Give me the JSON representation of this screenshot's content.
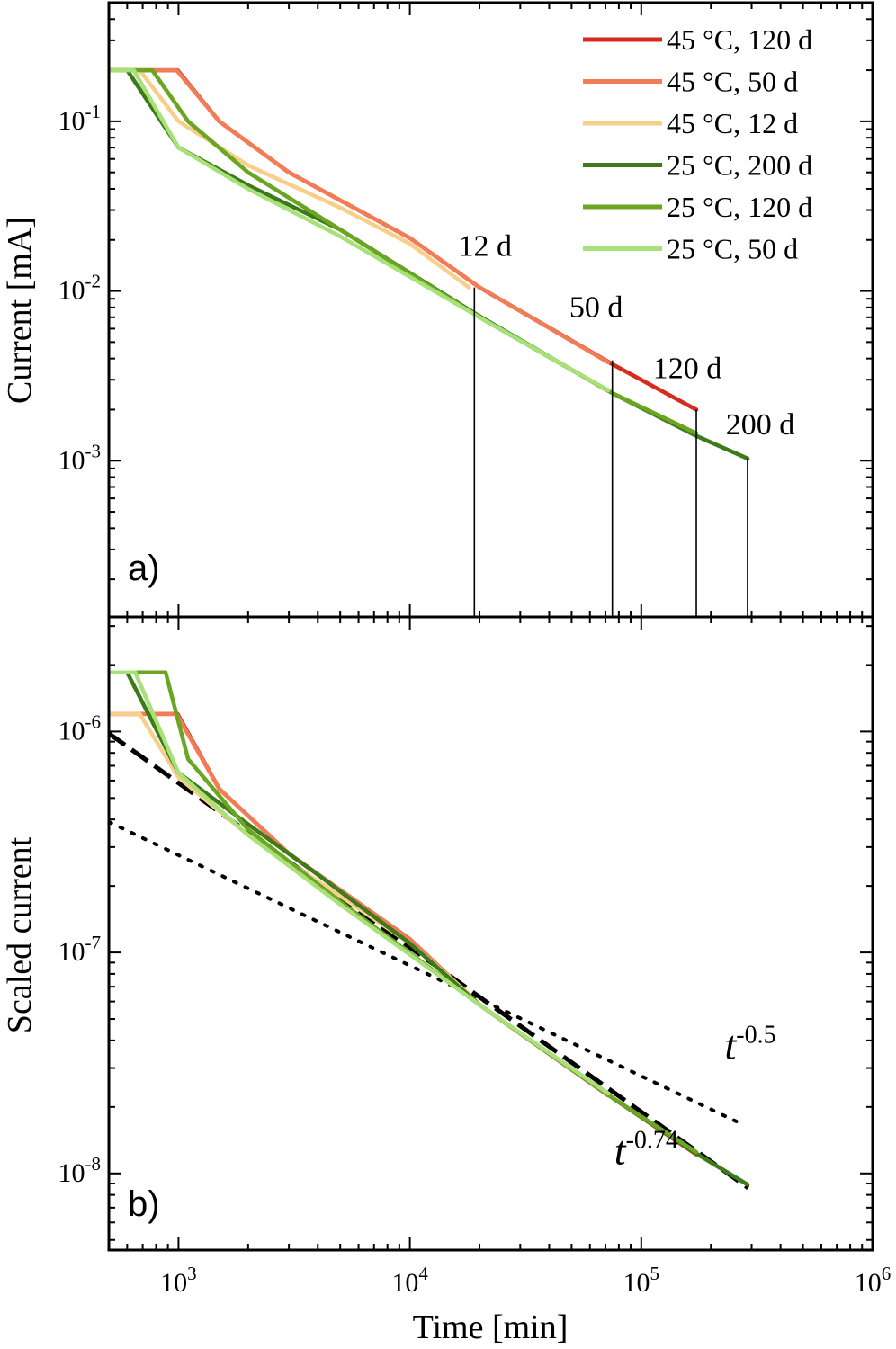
{
  "xlabel": "Time [min]",
  "chart_data": [
    {
      "panel": "a)",
      "type": "line",
      "xscale": "log",
      "yscale": "log",
      "xlabel": "Time [min]",
      "ylabel": "Current [mA]",
      "xlim": [
        500,
        1000000
      ],
      "ylim": [
        0.00012,
        0.5
      ],
      "xticks": [
        {
          "value": 1000,
          "base": "10",
          "exp": "3"
        },
        {
          "value": 10000,
          "base": "10",
          "exp": "4"
        },
        {
          "value": 100000,
          "base": "10",
          "exp": "5"
        },
        {
          "value": 1000000,
          "base": "10",
          "exp": "6"
        }
      ],
      "yticks": [
        {
          "value": 0.1,
          "base": "10",
          "exp": "-1"
        },
        {
          "value": 0.01,
          "base": "10",
          "exp": "-2"
        },
        {
          "value": 0.001,
          "base": "10",
          "exp": "-3"
        }
      ],
      "legend_position": "top-right",
      "series": [
        {
          "name": "45 °C, 120 d",
          "color": "#d62b1f",
          "x": [
            500,
            990,
            1500,
            3000,
            10000,
            20000,
            75000,
            173000
          ],
          "y": [
            0.2,
            0.2,
            0.1,
            0.05,
            0.0205,
            0.0105,
            0.0037,
            0.002
          ]
        },
        {
          "name": "45 °C, 50 d",
          "color": "#f27c55",
          "x": [
            500,
            980,
            1500,
            3000,
            10000,
            20000,
            72000
          ],
          "y": [
            0.2,
            0.2,
            0.1,
            0.05,
            0.0205,
            0.0105,
            0.0038
          ]
        },
        {
          "name": "45 °C, 12 d",
          "color": "#f8cf8a",
          "x": [
            500,
            680,
            1000,
            2000,
            5000,
            10000,
            18000
          ],
          "y": [
            0.2,
            0.2,
            0.1,
            0.055,
            0.031,
            0.019,
            0.0105
          ]
        },
        {
          "name": "25 °C, 200 d",
          "color": "#3d7a1a",
          "x": [
            500,
            600,
            1000,
            2000,
            5000,
            20000,
            75000,
            173000,
            288000
          ],
          "y": [
            0.2,
            0.2,
            0.07,
            0.042,
            0.023,
            0.0071,
            0.0025,
            0.0014,
            0.00103
          ]
        },
        {
          "name": "25 °C, 120 d",
          "color": "#6aa621",
          "x": [
            500,
            770,
            1100,
            2000,
            5000,
            20000,
            75000,
            173000
          ],
          "y": [
            0.2,
            0.2,
            0.1,
            0.05,
            0.023,
            0.007,
            0.0025,
            0.00145
          ]
        },
        {
          "name": "25 °C, 50 d",
          "color": "#a8e07a",
          "x": [
            500,
            640,
            1000,
            2000,
            5000,
            20000,
            72000
          ],
          "y": [
            0.2,
            0.2,
            0.07,
            0.04,
            0.021,
            0.007,
            0.0026
          ]
        }
      ],
      "annotations": [
        {
          "text": "12 d",
          "x": 19000,
          "y_top": 0.0105
        },
        {
          "text": "50 d",
          "x": 75000,
          "y_top": 0.0039
        },
        {
          "text": "120 d",
          "x": 173000,
          "y_top": 0.002
        },
        {
          "text": "200 d",
          "x": 288000,
          "y_top": 0.00103
        }
      ]
    },
    {
      "panel": "b)",
      "type": "line",
      "xscale": "log",
      "yscale": "log",
      "xlabel": "Time [min]",
      "ylabel": "Scaled current",
      "xlim": [
        500,
        1000000
      ],
      "ylim": [
        4.5e-09,
        3.3e-06
      ],
      "xticks": [
        {
          "value": 1000,
          "base": "10",
          "exp": "3"
        },
        {
          "value": 10000,
          "base": "10",
          "exp": "4"
        },
        {
          "value": 100000,
          "base": "10",
          "exp": "5"
        },
        {
          "value": 1000000,
          "base": "10",
          "exp": "6"
        }
      ],
      "yticks": [
        {
          "value": 1e-06,
          "base": "10",
          "exp": "-6"
        },
        {
          "value": 1e-07,
          "base": "10",
          "exp": "-7"
        },
        {
          "value": 1e-08,
          "base": "10",
          "exp": "-8"
        }
      ],
      "series": [
        {
          "name": "45 °C, 120 d",
          "color": "#d62b1f",
          "x": [
            500,
            990,
            1500,
            3000,
            10000,
            20000,
            75000,
            173000
          ],
          "y": [
            1.2e-06,
            1.2e-06,
            5.5e-07,
            2.8e-07,
            1.15e-07,
            5.8e-08,
            2.2e-08,
            1.22e-08
          ]
        },
        {
          "name": "45 °C, 50 d",
          "color": "#f27c55",
          "x": [
            500,
            980,
            1500,
            3000,
            10000,
            20000,
            72000
          ],
          "y": [
            1.2e-06,
            1.2e-06,
            5.5e-07,
            2.8e-07,
            1.15e-07,
            5.8e-08,
            2.25e-08
          ]
        },
        {
          "name": "45 °C, 12 d",
          "color": "#f8cf8a",
          "x": [
            500,
            680,
            1000,
            2000,
            5000,
            10000,
            18000
          ],
          "y": [
            1.2e-06,
            1.2e-06,
            6.2e-07,
            3.4e-07,
            1.8e-07,
            1.1e-07,
            6.5e-08
          ]
        },
        {
          "name": "25 °C, 200 d",
          "color": "#3d7a1a",
          "x": [
            500,
            600,
            1000,
            2000,
            4000,
            10000,
            20000,
            75000,
            173000,
            288000
          ],
          "y": [
            1.85e-06,
            1.85e-06,
            6.5e-07,
            3.8e-07,
            2.25e-07,
            1.1e-07,
            5.8e-08,
            2.2e-08,
            1.23e-08,
            8.9e-09
          ]
        },
        {
          "name": "25 °C, 120 d",
          "color": "#6aa621",
          "x": [
            500,
            880,
            1100,
            2000,
            5000,
            20000,
            75000,
            173000
          ],
          "y": [
            1.85e-06,
            1.85e-06,
            7.5e-07,
            3.6e-07,
            1.7e-07,
            5.8e-08,
            2.2e-08,
            1.25e-08
          ]
        },
        {
          "name": "25 °C, 50 d",
          "color": "#a8e07a",
          "x": [
            500,
            650,
            1000,
            2000,
            5000,
            20000,
            72000
          ],
          "y": [
            1.85e-06,
            1.85e-06,
            6.5e-07,
            3.4e-07,
            1.65e-07,
            5.8e-08,
            2.3e-08
          ]
        }
      ],
      "fits": [
        {
          "label": "t",
          "exponent": "-0.74",
          "style": "dashed",
          "x": [
            500,
            290000
          ],
          "y": [
            9.8e-07,
            8.6e-09
          ],
          "label_x": 100000,
          "label_y": 1.1e-08
        },
        {
          "label": "t",
          "exponent": "-0.5",
          "style": "dotted",
          "x": [
            500,
            280000
          ],
          "y": [
            3.9e-07,
            1.65e-08
          ],
          "label_x": 300000,
          "label_y": 3.3e-08
        }
      ]
    }
  ]
}
